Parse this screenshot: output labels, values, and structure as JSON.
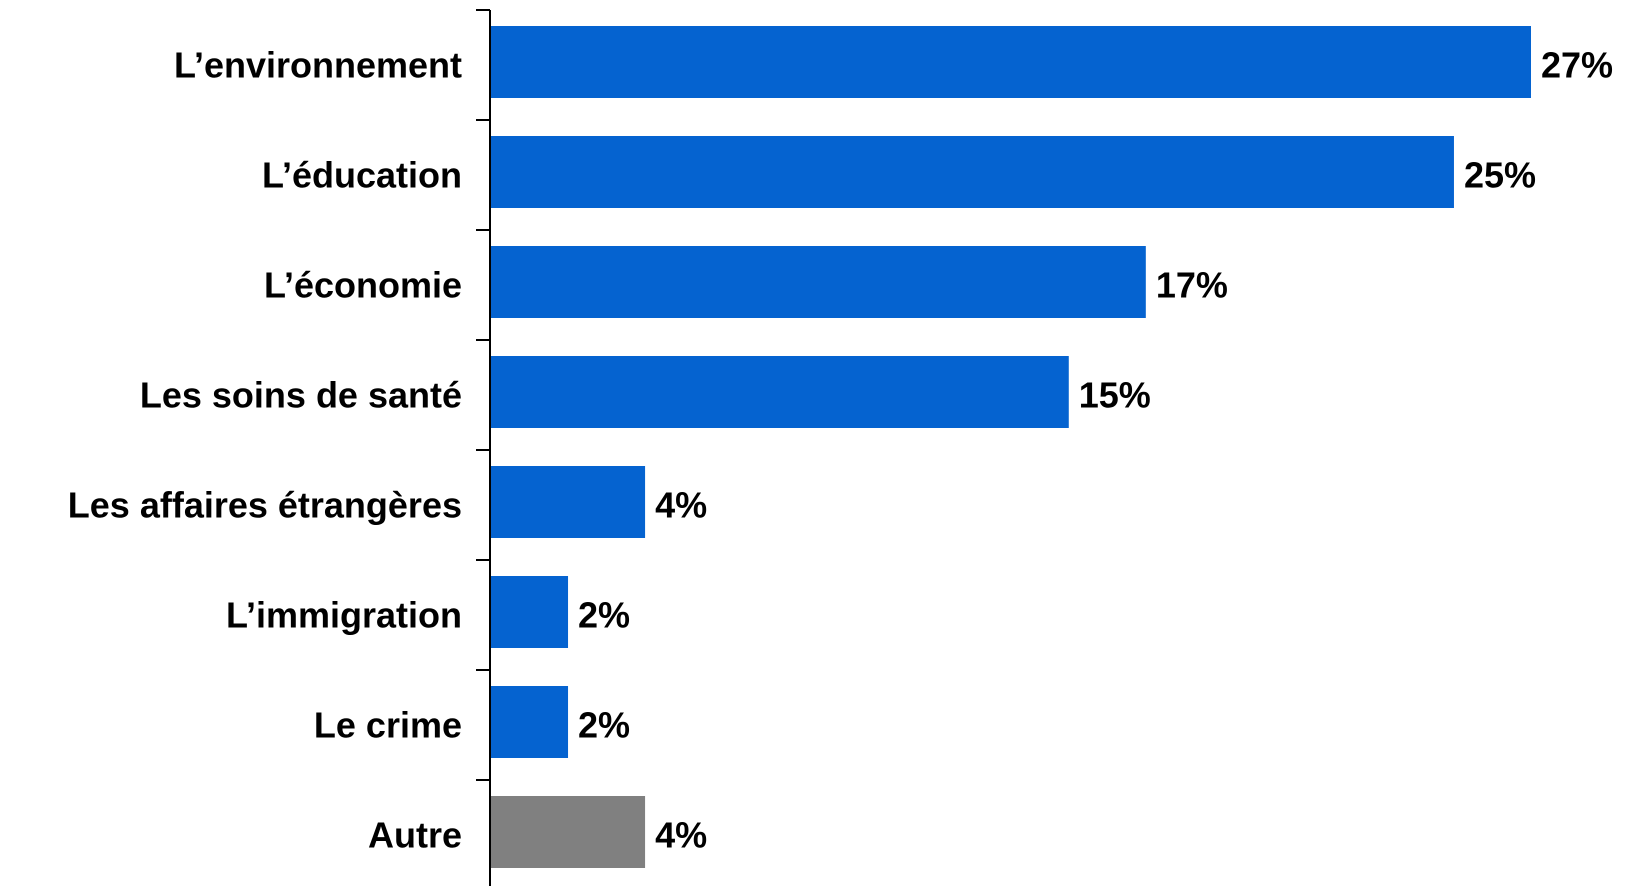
{
  "chart_data": {
    "type": "bar",
    "orientation": "horizontal",
    "categories": [
      "L’environnement",
      "L’éducation",
      "L’économie",
      "Les soins de santé",
      "Les affaires étrangères",
      "L’immigration",
      "Le crime",
      "Autre"
    ],
    "values": [
      27,
      25,
      17,
      15,
      4,
      2,
      2,
      4
    ],
    "value_labels": [
      "27%",
      "25%",
      "17%",
      "15%",
      "4%",
      "2%",
      "2%",
      "4%"
    ],
    "bar_colors": [
      "#0563D0",
      "#0563D0",
      "#0563D0",
      "#0563D0",
      "#0563D0",
      "#0563D0",
      "#0563D0",
      "#808080"
    ],
    "xlim": [
      0,
      27
    ],
    "title": "",
    "xlabel": "",
    "ylabel": "",
    "grid": false,
    "legend": "none"
  }
}
